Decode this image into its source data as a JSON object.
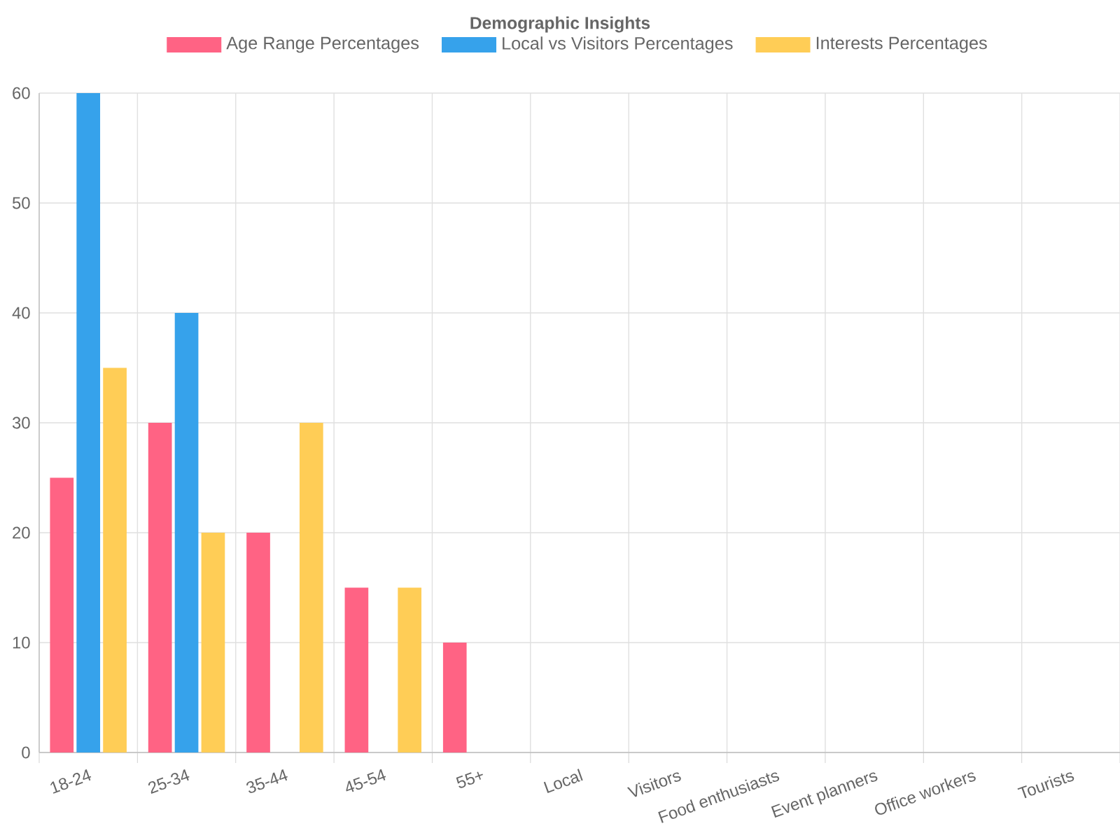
{
  "chart_data": {
    "type": "bar",
    "title": "Demographic Insights",
    "categories": [
      "18-24",
      "25-34",
      "35-44",
      "45-54",
      "55+",
      "Local",
      "Visitors",
      "Food enthusiasts",
      "Event planners",
      "Office workers",
      "Tourists"
    ],
    "series": [
      {
        "name": "Age Range Percentages",
        "color": "#ff6384",
        "values": [
          25,
          30,
          20,
          15,
          10,
          null,
          null,
          null,
          null,
          null,
          null
        ]
      },
      {
        "name": "Local vs Visitors Percentages",
        "color": "#36a2eb",
        "values": [
          60,
          40,
          null,
          null,
          null,
          null,
          null,
          null,
          null,
          null,
          null
        ]
      },
      {
        "name": "Interests Percentages",
        "color": "#ffcd56",
        "values": [
          35,
          20,
          30,
          15,
          null,
          null,
          null,
          null,
          null,
          null,
          null
        ]
      }
    ],
    "ylim": [
      0,
      60
    ],
    "yticks": [
      0,
      10,
      20,
      30,
      40,
      50,
      60
    ],
    "grid": true,
    "legend": "top"
  }
}
